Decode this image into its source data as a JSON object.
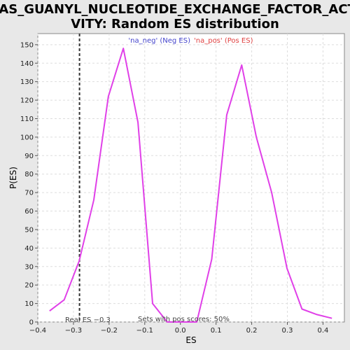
{
  "chart_data": {
    "type": "line",
    "title_line1": "RAS_GUANYL_NUCLEOTIDE_EXCHANGE_FACTOR_ACTI",
    "title_line2": "VITY: Random ES distribution",
    "xlabel": "ES",
    "ylabel": "P(ES)",
    "xlim": [
      -0.4,
      0.46
    ],
    "ylim": [
      0,
      156
    ],
    "x_ticks": [
      -0.4,
      -0.3,
      -0.2,
      -0.1,
      0.0,
      0.1,
      0.2,
      0.3,
      0.4
    ],
    "x_tick_labels": [
      "−0.4",
      "−0.3",
      "−0.2",
      "−0.1",
      "0.0",
      "0.1",
      "0.2",
      "0.3",
      "0.4"
    ],
    "y_ticks": [
      0,
      10,
      20,
      30,
      40,
      50,
      60,
      70,
      80,
      90,
      100,
      110,
      120,
      130,
      140,
      150
    ],
    "y_tick_labels": [
      "0",
      "10",
      "20",
      "30",
      "40",
      "50",
      "60",
      "70",
      "80",
      "90",
      "100",
      "110",
      "120",
      "130",
      "140",
      "150"
    ],
    "grid": true,
    "series": [
      {
        "color": "#e040e8",
        "x": [
          -0.367,
          -0.326,
          -0.284,
          -0.243,
          -0.202,
          -0.16,
          -0.119,
          -0.078,
          -0.037,
          0.005,
          0.046,
          0.088,
          0.13,
          0.172,
          0.213,
          0.256,
          0.299,
          0.341,
          0.383,
          0.425
        ],
        "values": [
          6,
          12,
          33,
          66,
          122,
          148,
          108,
          10,
          0,
          0,
          0,
          34,
          112,
          139,
          100,
          70,
          29,
          7,
          4,
          2
        ]
      }
    ],
    "real_es": -0.283,
    "legend": {
      "placement": "top-center",
      "neg_label": "'na_neg' (Neg ES)",
      "pos_label": "'na_pos' (Pos ES)",
      "neg_color": "#4444cc",
      "pos_color": "#e04040"
    },
    "annotations": {
      "real_es_label": "Real ES −0.3",
      "pos_scores_label": "Sets with pos scores: 50%"
    }
  }
}
